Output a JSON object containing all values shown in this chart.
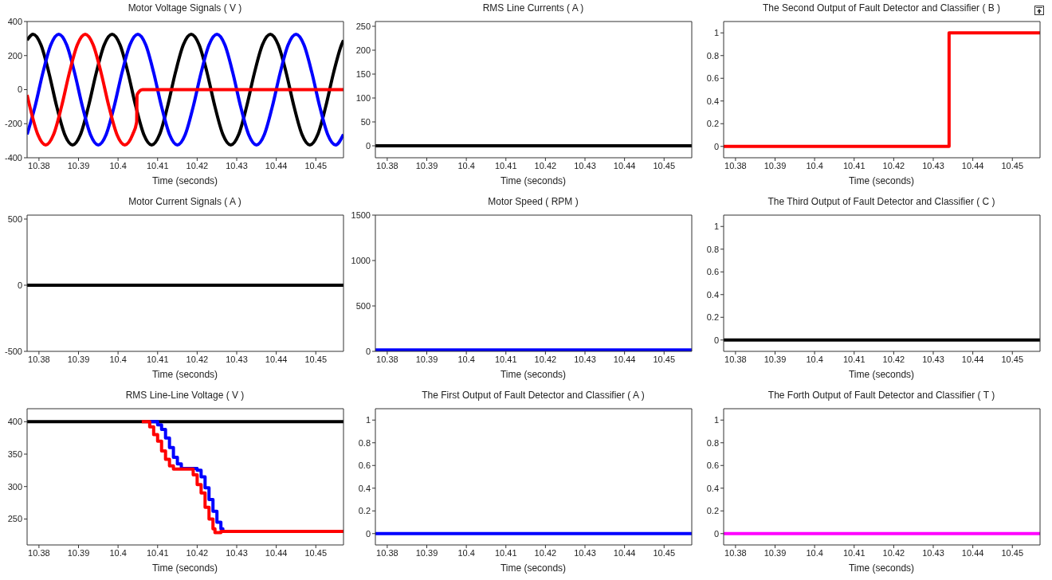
{
  "chart_data": [
    {
      "type": "line",
      "title": "Motor Voltage Signals ( V )",
      "xlabel": "Time (seconds)",
      "xlim": [
        10.377,
        10.457
      ],
      "xticks": [
        10.38,
        10.39,
        10.4,
        10.41,
        10.42,
        10.43,
        10.44,
        10.45
      ],
      "ylim": [
        -400,
        400
      ],
      "yticks": [
        -400,
        -200,
        0,
        200,
        400
      ],
      "series": [
        {
          "color": "#000000",
          "x": [
            10.377,
            10.3785,
            10.3805,
            10.3825,
            10.3845,
            10.3865,
            10.3885,
            10.3905,
            10.3925,
            10.3945,
            10.3965,
            10.3985,
            10.4005,
            10.4025,
            10.4045,
            10.4065,
            10.4085,
            10.4105,
            10.4125,
            10.4145,
            10.4165,
            10.4185,
            10.4205,
            10.4225,
            10.4245,
            10.4265,
            10.4285,
            10.4305,
            10.4325,
            10.4345,
            10.4365,
            10.4385,
            10.4405,
            10.4425,
            10.4445,
            10.4465,
            10.4485,
            10.4505,
            10.4525,
            10.4545,
            10.4565,
            10.457
          ],
          "values": [
            290,
            325,
            263,
            100,
            -100,
            -263,
            -325,
            -263,
            -100,
            100,
            263,
            325,
            263,
            100,
            -100,
            -263,
            -325,
            -263,
            -100,
            100,
            263,
            325,
            263,
            100,
            -100,
            -263,
            -325,
            -263,
            -100,
            100,
            263,
            325,
            263,
            100,
            -100,
            -263,
            -325,
            -263,
            -100,
            100,
            263,
            290
          ]
        },
        {
          "color": "#0000ff",
          "x": [
            10.377,
            10.379,
            10.381,
            10.383,
            10.385,
            10.387,
            10.389,
            10.391,
            10.393,
            10.395,
            10.397,
            10.399,
            10.401,
            10.403,
            10.405,
            10.407,
            10.409,
            10.411,
            10.413,
            10.415,
            10.417,
            10.419,
            10.421,
            10.423,
            10.425,
            10.427,
            10.429,
            10.431,
            10.433,
            10.435,
            10.437,
            10.439,
            10.441,
            10.443,
            10.445,
            10.447,
            10.449,
            10.451,
            10.453,
            10.455,
            10.457
          ],
          "values": [
            -263,
            -100,
            100,
            263,
            325,
            263,
            100,
            -100,
            -263,
            -325,
            -263,
            -100,
            100,
            263,
            325,
            263,
            100,
            -100,
            -263,
            -325,
            -263,
            -100,
            100,
            263,
            325,
            263,
            100,
            -100,
            -263,
            -325,
            -263,
            -100,
            100,
            263,
            325,
            263,
            100,
            -100,
            -263,
            -325,
            -263
          ]
        },
        {
          "color": "#ff0000",
          "x": [
            10.377,
            10.3777,
            10.3797,
            10.3817,
            10.3837,
            10.3857,
            10.3877,
            10.3897,
            10.3917,
            10.3937,
            10.3957,
            10.3977,
            10.3997,
            10.4017,
            10.4037,
            10.4047,
            10.4048,
            10.4062,
            10.457
          ],
          "values": [
            -31,
            -100,
            -263,
            -325,
            -263,
            -100,
            100,
            263,
            325,
            263,
            100,
            -100,
            -263,
            -325,
            -263,
            -191,
            -30,
            0,
            0
          ]
        }
      ]
    },
    {
      "type": "line",
      "title": "RMS Line Currents ( A )",
      "xlabel": "Time (seconds)",
      "xlim": [
        10.377,
        10.457
      ],
      "xticks": [
        10.38,
        10.39,
        10.4,
        10.41,
        10.42,
        10.43,
        10.44,
        10.45
      ],
      "ylim": [
        -25,
        260
      ],
      "yticks": [
        0,
        50,
        100,
        150,
        200,
        250
      ],
      "series": [
        {
          "color": "#000000",
          "x": [
            10.377,
            10.457
          ],
          "values": [
            0,
            0
          ]
        }
      ]
    },
    {
      "type": "step",
      "title": "The Second Output of Fault Detector and Classifier ( B )",
      "xlabel": "Time (seconds)",
      "xlim": [
        10.377,
        10.457
      ],
      "xticks": [
        10.38,
        10.39,
        10.4,
        10.41,
        10.42,
        10.43,
        10.44,
        10.45
      ],
      "ylim": [
        -0.1,
        1.1
      ],
      "yticks": [
        0,
        0.2,
        0.4,
        0.6,
        0.8,
        1
      ],
      "series": [
        {
          "color": "#ff0000",
          "x": [
            10.377,
            10.434,
            10.457
          ],
          "values": [
            0,
            1,
            1
          ]
        }
      ]
    },
    {
      "type": "line",
      "title": "Motor Current Signals ( A )",
      "xlabel": "Time (seconds)",
      "xlim": [
        10.377,
        10.457
      ],
      "xticks": [
        10.38,
        10.39,
        10.4,
        10.41,
        10.42,
        10.43,
        10.44,
        10.45
      ],
      "ylim": [
        -500,
        530
      ],
      "yticks": [
        -500,
        0,
        500
      ],
      "series": [
        {
          "color": "#000000",
          "x": [
            10.377,
            10.457
          ],
          "values": [
            0,
            0
          ]
        }
      ]
    },
    {
      "type": "line",
      "title": "Motor Speed ( RPM )",
      "xlabel": "Time (seconds)",
      "xlim": [
        10.377,
        10.457
      ],
      "xticks": [
        10.38,
        10.39,
        10.4,
        10.41,
        10.42,
        10.43,
        10.44,
        10.45
      ],
      "ylim": [
        0,
        1500
      ],
      "yticks": [
        0,
        500,
        1000,
        1500
      ],
      "series": [
        {
          "color": "#0000ff",
          "x": [
            10.377,
            10.457
          ],
          "values": [
            15,
            15
          ]
        }
      ]
    },
    {
      "type": "step",
      "title": "The Third Output of Fault Detector and Classifier ( C )",
      "xlabel": "Time (seconds)",
      "xlim": [
        10.377,
        10.457
      ],
      "xticks": [
        10.38,
        10.39,
        10.4,
        10.41,
        10.42,
        10.43,
        10.44,
        10.45
      ],
      "ylim": [
        -0.1,
        1.1
      ],
      "yticks": [
        0,
        0.2,
        0.4,
        0.6,
        0.8,
        1
      ],
      "series": [
        {
          "color": "#000000",
          "x": [
            10.377,
            10.457
          ],
          "values": [
            0,
            0
          ]
        }
      ]
    },
    {
      "type": "step",
      "title": "RMS Line-Line Voltage ( V )",
      "xlabel": "Time (seconds)",
      "xlim": [
        10.377,
        10.457
      ],
      "xticks": [
        10.38,
        10.39,
        10.4,
        10.41,
        10.42,
        10.43,
        10.44,
        10.45
      ],
      "ylim": [
        210,
        420
      ],
      "yticks": [
        250,
        300,
        350,
        400
      ],
      "series": [
        {
          "color": "#000000",
          "x": [
            10.377,
            10.457
          ],
          "values": [
            400,
            400
          ]
        },
        {
          "color": "#0000ff",
          "x": [
            10.408,
            10.4095,
            10.41,
            10.411,
            10.412,
            10.413,
            10.414,
            10.415,
            10.416,
            10.419,
            10.42,
            10.421,
            10.422,
            10.423,
            10.424,
            10.425,
            10.426,
            10.4265
          ],
          "values": [
            400,
            400,
            395,
            388,
            375,
            360,
            345,
            335,
            328,
            328,
            325,
            315,
            298,
            280,
            262,
            245,
            235,
            232
          ]
        },
        {
          "color": "#ff0000",
          "x": [
            10.406,
            10.4075,
            10.408,
            10.409,
            10.41,
            10.411,
            10.412,
            10.413,
            10.414,
            10.418,
            10.419,
            10.42,
            10.421,
            10.422,
            10.423,
            10.424,
            10.4245,
            10.4255,
            10.426,
            10.457
          ],
          "values": [
            400,
            400,
            392,
            380,
            370,
            355,
            342,
            332,
            327,
            327,
            318,
            303,
            290,
            268,
            250,
            235,
            229,
            229,
            231,
            231
          ]
        }
      ]
    },
    {
      "type": "step",
      "title": "The First Output of Fault Detector and Classifier ( A )",
      "xlabel": "Time (seconds)",
      "xlim": [
        10.377,
        10.457
      ],
      "xticks": [
        10.38,
        10.39,
        10.4,
        10.41,
        10.42,
        10.43,
        10.44,
        10.45
      ],
      "ylim": [
        -0.1,
        1.1
      ],
      "yticks": [
        0,
        0.2,
        0.4,
        0.6,
        0.8,
        1
      ],
      "series": [
        {
          "color": "#0000ff",
          "x": [
            10.377,
            10.457
          ],
          "values": [
            0,
            0
          ]
        }
      ]
    },
    {
      "type": "step",
      "title": "The Forth Output of Fault Detector and Classifier ( T )",
      "xlabel": "Time (seconds)",
      "xlim": [
        10.377,
        10.457
      ],
      "xticks": [
        10.38,
        10.39,
        10.4,
        10.41,
        10.42,
        10.43,
        10.44,
        10.45
      ],
      "ylim": [
        -0.1,
        1.1
      ],
      "yticks": [
        0,
        0.2,
        0.4,
        0.6,
        0.8,
        1
      ],
      "series": [
        {
          "color": "#ff00ff",
          "x": [
            10.377,
            10.457
          ],
          "values": [
            0,
            0
          ]
        }
      ]
    }
  ]
}
